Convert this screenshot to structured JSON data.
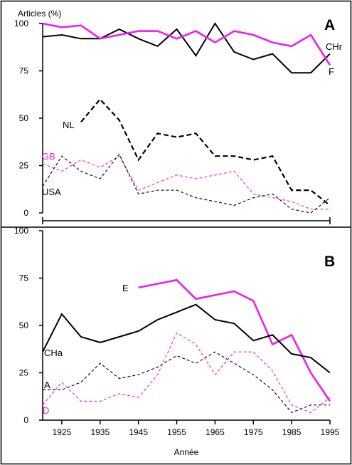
{
  "chart_data": [
    {
      "type": "line",
      "panel": "A",
      "ylabel": "Articles (%)",
      "xlabel": "",
      "xlim": [
        1920,
        1995
      ],
      "ylim": [
        0,
        100
      ],
      "yticks": [
        0,
        25,
        50,
        75,
        100
      ],
      "grid": false,
      "series": [
        {
          "name": "CHr",
          "color": "#000000",
          "style": "solid",
          "width": 2,
          "x": [
            1920,
            1925,
            1930,
            1935,
            1940,
            1945,
            1950,
            1955,
            1960,
            1965,
            1970,
            1975,
            1980,
            1985,
            1990,
            1995
          ],
          "y": [
            93,
            94,
            92,
            92,
            97,
            92,
            88,
            97,
            83,
            100,
            85,
            81,
            84,
            74,
            74,
            84
          ]
        },
        {
          "name": "F",
          "color": "#ee1fee",
          "style": "solid",
          "width": 2.6,
          "x": [
            1920,
            1925,
            1930,
            1935,
            1940,
            1945,
            1950,
            1955,
            1960,
            1965,
            1970,
            1975,
            1980,
            1985,
            1990,
            1995
          ],
          "y": [
            100,
            98,
            99,
            92,
            94,
            96,
            96,
            92,
            96,
            90,
            96,
            94,
            90,
            88,
            94,
            78
          ]
        },
        {
          "name": "NL",
          "color": "#000000",
          "style": "dashed-bold",
          "width": 2.2,
          "x": [
            1930,
            1935,
            1940,
            1945,
            1950,
            1955,
            1960,
            1965,
            1970,
            1975,
            1980,
            1985,
            1990,
            1995
          ],
          "y": [
            48,
            60,
            49,
            28,
            42,
            40,
            42,
            30,
            30,
            28,
            30,
            12,
            12,
            4
          ]
        },
        {
          "name": "GB",
          "color": "#ee1fee",
          "style": "dashed-thin",
          "width": 1.1,
          "x": [
            1920,
            1925,
            1930,
            1935,
            1940,
            1945,
            1950,
            1955,
            1960,
            1965,
            1970,
            1975,
            1980,
            1985,
            1990,
            1995
          ],
          "y": [
            26,
            22,
            28,
            24,
            30,
            12,
            16,
            20,
            18,
            20,
            22,
            10,
            8,
            6,
            2,
            2
          ]
        },
        {
          "name": "USA",
          "color": "#000000",
          "style": "dashed-thin",
          "width": 1.1,
          "x": [
            1920,
            1925,
            1930,
            1935,
            1940,
            1945,
            1950,
            1955,
            1960,
            1965,
            1970,
            1975,
            1980,
            1985,
            1990,
            1995
          ],
          "y": [
            14,
            30,
            22,
            18,
            31,
            10,
            12,
            12,
            8,
            6,
            4,
            8,
            10,
            2,
            0,
            8
          ]
        }
      ]
    },
    {
      "type": "line",
      "panel": "B",
      "ylabel": "",
      "xlabel": "Année",
      "xlim": [
        1920,
        1995
      ],
      "ylim": [
        0,
        100
      ],
      "yticks": [
        0,
        25,
        50,
        75,
        100
      ],
      "xticks": [
        1925,
        1935,
        1945,
        1955,
        1965,
        1975,
        1985,
        1995
      ],
      "grid": false,
      "series": [
        {
          "name": "E",
          "color": "#ee1fee",
          "style": "solid",
          "width": 2.6,
          "x": [
            1945,
            1950,
            1955,
            1960,
            1965,
            1970,
            1975,
            1980,
            1985,
            1990,
            1995
          ],
          "y": [
            70,
            72,
            74,
            64,
            66,
            68,
            63,
            40,
            45,
            25,
            10
          ]
        },
        {
          "name": "CHa",
          "color": "#000000",
          "style": "solid",
          "width": 2,
          "x": [
            1920,
            1925,
            1930,
            1935,
            1940,
            1945,
            1950,
            1955,
            1960,
            1965,
            1970,
            1975,
            1980,
            1985,
            1990,
            1995
          ],
          "y": [
            36,
            56,
            44,
            41,
            44,
            47,
            53,
            57,
            61,
            53,
            51,
            42,
            45,
            35,
            33,
            25
          ]
        },
        {
          "name": "A",
          "color": "#000000",
          "style": "dashed-thin",
          "width": 1.1,
          "x": [
            1920,
            1925,
            1930,
            1935,
            1940,
            1945,
            1950,
            1955,
            1960,
            1965,
            1970,
            1975,
            1980,
            1985,
            1990,
            1995
          ],
          "y": [
            16,
            16,
            20,
            30,
            22,
            24,
            28,
            34,
            30,
            36,
            30,
            24,
            16,
            4,
            8,
            8
          ]
        },
        {
          "name": "D",
          "color": "#ee1fee",
          "style": "dashed-thin",
          "width": 1.1,
          "x": [
            1920,
            1925,
            1930,
            1935,
            1940,
            1945,
            1950,
            1955,
            1960,
            1965,
            1970,
            1975,
            1980,
            1985,
            1990,
            1995
          ],
          "y": [
            8,
            20,
            10,
            10,
            14,
            12,
            24,
            46,
            40,
            24,
            36,
            36,
            26,
            8,
            4,
            12
          ]
        }
      ]
    }
  ]
}
